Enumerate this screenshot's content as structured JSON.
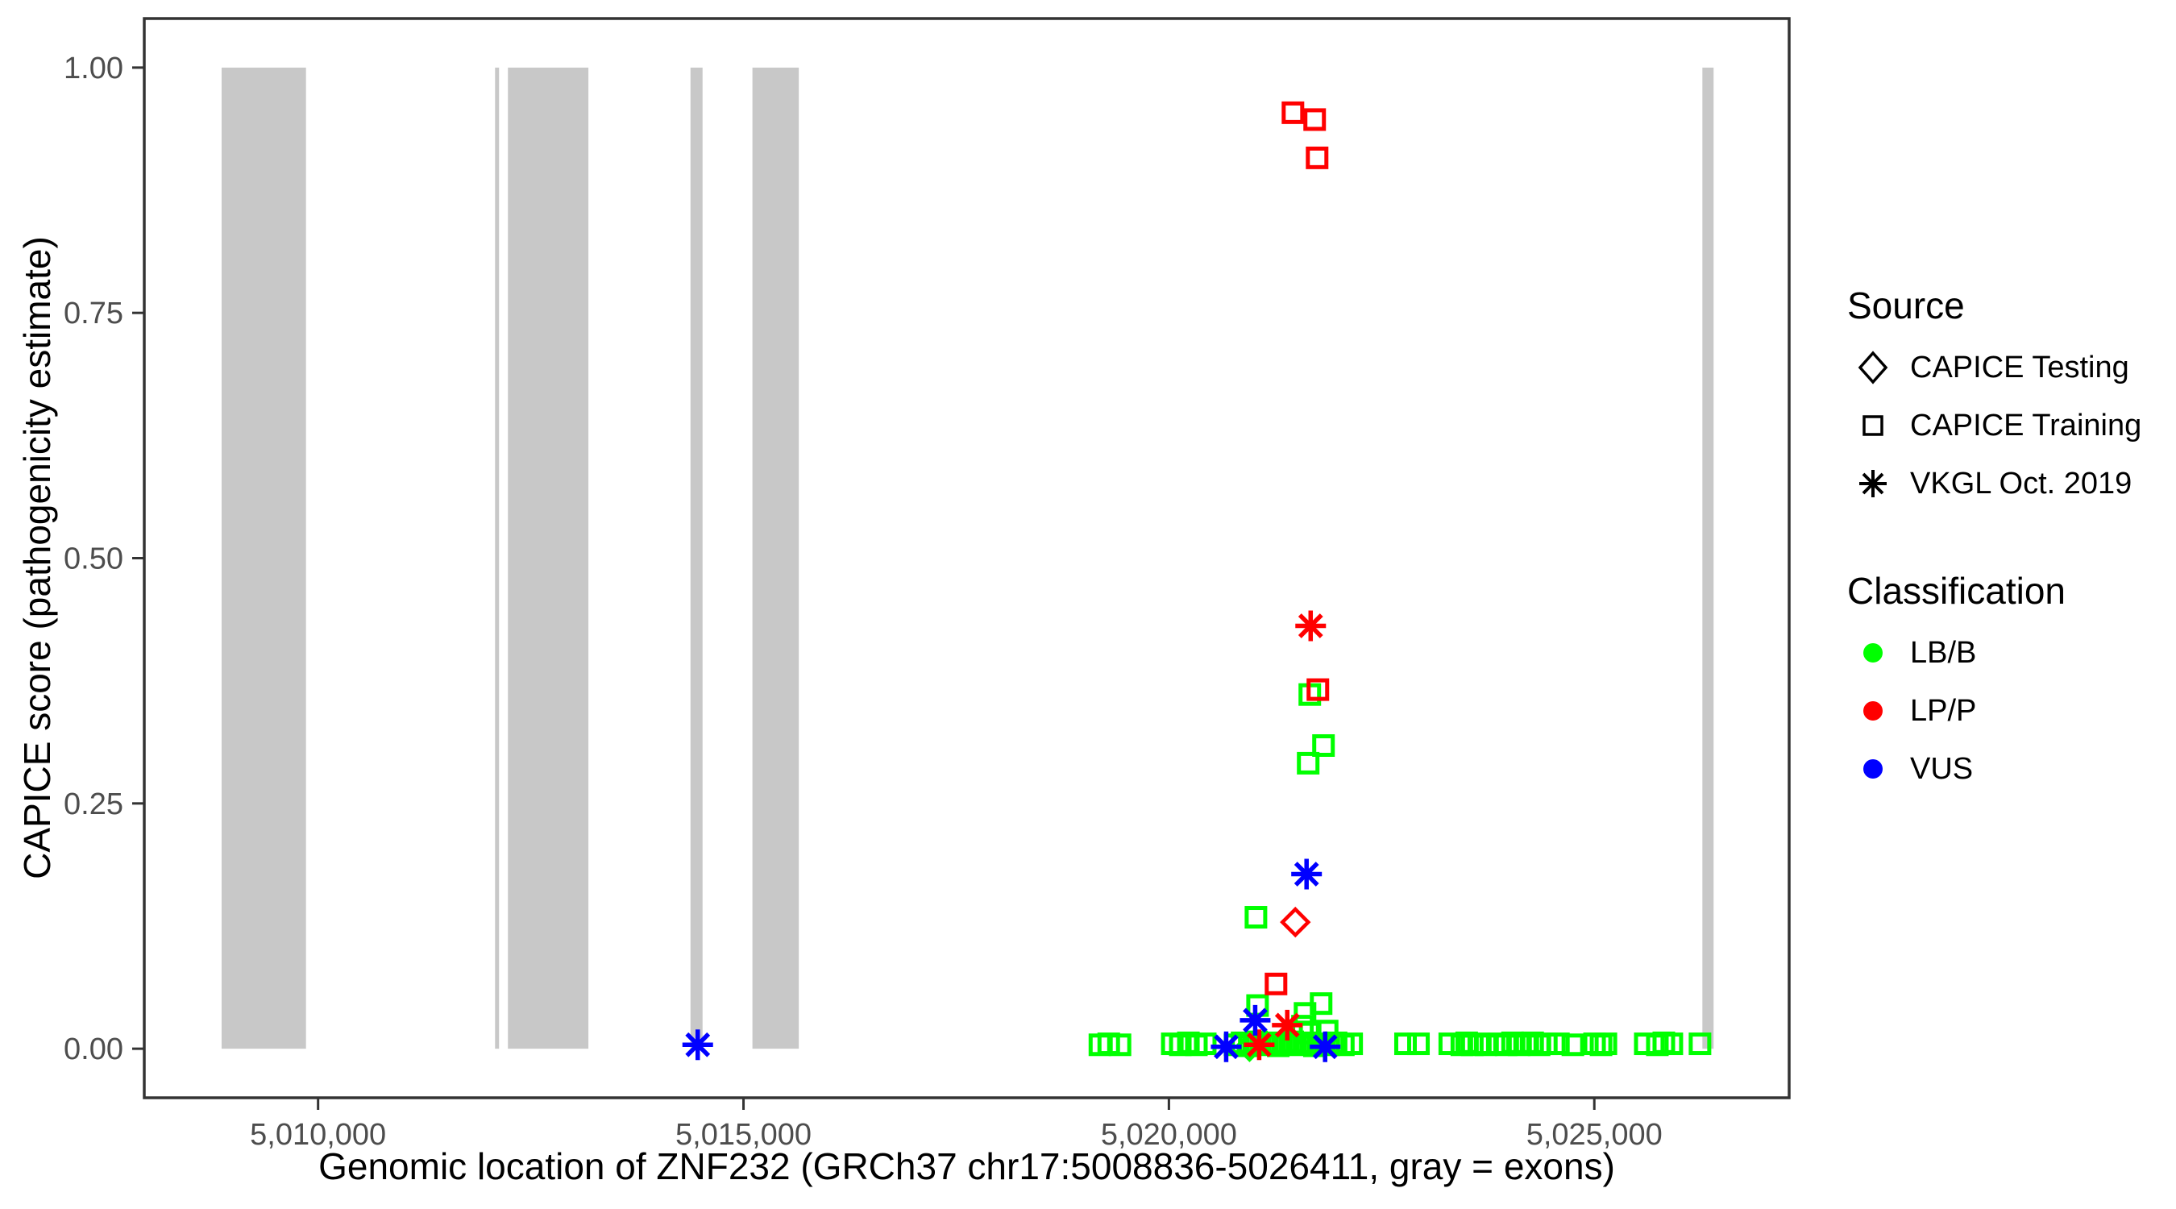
{
  "figure_title": "",
  "colors": {
    "background": "#FFFFFF",
    "panel_border": "#333333",
    "tick_text": "#4D4D4D",
    "exon_gray": "#C8C8C8",
    "lb_b_green": "#00FF00",
    "lp_p_red": "#FF0000",
    "vus_blue": "#0000FF",
    "legend_symbol_black": "#000000"
  },
  "legend": {
    "source": {
      "title": "Source",
      "items": [
        {
          "label": "CAPICE Testing",
          "symbol": "diamond-open"
        },
        {
          "label": "CAPICE Training",
          "symbol": "square-open"
        },
        {
          "label": "VKGL Oct. 2019",
          "symbol": "asterisk"
        }
      ]
    },
    "classification": {
      "title": "Classification",
      "items": [
        {
          "label": "LB/B",
          "color": "#00FF00"
        },
        {
          "label": "LP/P",
          "color": "#FF0000"
        },
        {
          "label": "VUS",
          "color": "#0000FF"
        }
      ]
    }
  },
  "chart_data": {
    "type": "scatter",
    "title": "",
    "xlabel": "Genomic location of ZNF232 (GRCh37 chr17:5008836-5026411, gray = exons)",
    "ylabel": "CAPICE score (pathogenicity estimate)",
    "xlim": [
      5007957,
      5027290
    ],
    "ylim": [
      -0.05,
      1.05
    ],
    "grid": false,
    "legend_position": "right",
    "x_ticks": {
      "values": [
        5010000,
        5015000,
        5020000,
        5025000
      ],
      "labels": [
        "5,010,000",
        "5,015,000",
        "5,020,000",
        "5,025,000"
      ]
    },
    "y_ticks": {
      "values": [
        0.0,
        0.25,
        0.5,
        0.75,
        1.0
      ],
      "labels": [
        "0.00",
        "0.25",
        "0.50",
        "0.75",
        "1.00"
      ]
    },
    "exon_bands_x_ranges": [
      [
        5008866,
        5009858
      ],
      [
        5012080,
        5012127
      ],
      [
        5012231,
        5013177
      ],
      [
        5014377,
        5014519
      ],
      [
        5015105,
        5015650
      ],
      [
        5026270,
        5026402
      ]
    ],
    "exon_bands_y_range": [
      0.0,
      1.0
    ],
    "shape_map": {
      "testing": "diamond",
      "training": "square",
      "vkgl": "asterisk"
    },
    "source_labels": {
      "testing": "CAPICE Testing",
      "training": "CAPICE Training",
      "vkgl": "VKGL Oct. 2019"
    },
    "color_map": {
      "LB/B": "#00FF00",
      "LP/P": "#FF0000",
      "VUS": "#0000FF"
    },
    "points": [
      {
        "x": 5019189,
        "y": 0.004,
        "source": "training",
        "classification": "LB/B"
      },
      {
        "x": 5019293,
        "y": 0.005,
        "source": "training",
        "classification": "LB/B"
      },
      {
        "x": 5019425,
        "y": 0.004,
        "source": "training",
        "classification": "LB/B"
      },
      {
        "x": 5020040,
        "y": 0.005,
        "source": "training",
        "classification": "LB/B"
      },
      {
        "x": 5020134,
        "y": 0.004,
        "source": "training",
        "classification": "LB/B"
      },
      {
        "x": 5020229,
        "y": 0.006,
        "source": "training",
        "classification": "LB/B"
      },
      {
        "x": 5020323,
        "y": 0.004,
        "source": "training",
        "classification": "LB/B"
      },
      {
        "x": 5020427,
        "y": 0.005,
        "source": "training",
        "classification": "LB/B"
      },
      {
        "x": 5020777,
        "y": 0.004,
        "source": "training",
        "classification": "LB/B"
      },
      {
        "x": 5020860,
        "y": 0.006,
        "source": "training",
        "classification": "LB/B"
      },
      {
        "x": 5020945,
        "y": 0.003,
        "source": "training",
        "classification": "LB/B"
      },
      {
        "x": 5021030,
        "y": 0.007,
        "source": "training",
        "classification": "LB/B"
      },
      {
        "x": 5021115,
        "y": 0.004,
        "source": "training",
        "classification": "LB/B"
      },
      {
        "x": 5021200,
        "y": 0.006,
        "source": "training",
        "classification": "LB/B"
      },
      {
        "x": 5021285,
        "y": 0.003,
        "source": "training",
        "classification": "LB/B"
      },
      {
        "x": 5021370,
        "y": 0.005,
        "source": "training",
        "classification": "LB/B"
      },
      {
        "x": 5021455,
        "y": 0.007,
        "source": "training",
        "classification": "LB/B"
      },
      {
        "x": 5021540,
        "y": 0.004,
        "source": "training",
        "classification": "LB/B"
      },
      {
        "x": 5021625,
        "y": 0.006,
        "source": "training",
        "classification": "LB/B"
      },
      {
        "x": 5021710,
        "y": 0.003,
        "source": "training",
        "classification": "LB/B"
      },
      {
        "x": 5021795,
        "y": 0.005,
        "source": "training",
        "classification": "LB/B"
      },
      {
        "x": 5021880,
        "y": 0.004,
        "source": "training",
        "classification": "LB/B"
      },
      {
        "x": 5021965,
        "y": 0.006,
        "source": "training",
        "classification": "LB/B"
      },
      {
        "x": 5022050,
        "y": 0.004,
        "source": "training",
        "classification": "LB/B"
      },
      {
        "x": 5022148,
        "y": 0.005,
        "source": "training",
        "classification": "LB/B"
      },
      {
        "x": 5022781,
        "y": 0.005,
        "source": "training",
        "classification": "LB/B"
      },
      {
        "x": 5022933,
        "y": 0.005,
        "source": "training",
        "classification": "LB/B"
      },
      {
        "x": 5023301,
        "y": 0.005,
        "source": "training",
        "classification": "LB/B"
      },
      {
        "x": 5023443,
        "y": 0.004,
        "source": "training",
        "classification": "LB/B"
      },
      {
        "x": 5023500,
        "y": 0.006,
        "source": "training",
        "classification": "LB/B"
      },
      {
        "x": 5023566,
        "y": 0.004,
        "source": "training",
        "classification": "LB/B"
      },
      {
        "x": 5023642,
        "y": 0.005,
        "source": "training",
        "classification": "LB/B"
      },
      {
        "x": 5023727,
        "y": 0.004,
        "source": "training",
        "classification": "LB/B"
      },
      {
        "x": 5023878,
        "y": 0.005,
        "source": "training",
        "classification": "LB/B"
      },
      {
        "x": 5023963,
        "y": 0.004,
        "source": "training",
        "classification": "LB/B"
      },
      {
        "x": 5024039,
        "y": 0.006,
        "source": "training",
        "classification": "LB/B"
      },
      {
        "x": 5024115,
        "y": 0.004,
        "source": "training",
        "classification": "LB/B"
      },
      {
        "x": 5024200,
        "y": 0.005,
        "source": "training",
        "classification": "LB/B"
      },
      {
        "x": 5024275,
        "y": 0.006,
        "source": "training",
        "classification": "LB/B"
      },
      {
        "x": 5024351,
        "y": 0.004,
        "source": "training",
        "classification": "LB/B"
      },
      {
        "x": 5024436,
        "y": 0.005,
        "source": "training",
        "classification": "LB/B"
      },
      {
        "x": 5024578,
        "y": 0.005,
        "source": "training",
        "classification": "LB/B"
      },
      {
        "x": 5024748,
        "y": 0.004,
        "source": "training",
        "classification": "LB/B"
      },
      {
        "x": 5025003,
        "y": 0.005,
        "source": "training",
        "classification": "LB/B"
      },
      {
        "x": 5025079,
        "y": 0.004,
        "source": "training",
        "classification": "LB/B"
      },
      {
        "x": 5025136,
        "y": 0.005,
        "source": "training",
        "classification": "LB/B"
      },
      {
        "x": 5025599,
        "y": 0.005,
        "source": "training",
        "classification": "LB/B"
      },
      {
        "x": 5025741,
        "y": 0.004,
        "source": "training",
        "classification": "LB/B"
      },
      {
        "x": 5025817,
        "y": 0.006,
        "source": "training",
        "classification": "LB/B"
      },
      {
        "x": 5025911,
        "y": 0.005,
        "source": "training",
        "classification": "LB/B"
      },
      {
        "x": 5026242,
        "y": 0.005,
        "source": "training",
        "classification": "LB/B"
      },
      {
        "x": 5021656,
        "y": 0.361,
        "source": "training",
        "classification": "LB/B"
      },
      {
        "x": 5021817,
        "y": 0.309,
        "source": "training",
        "classification": "LB/B"
      },
      {
        "x": 5021637,
        "y": 0.291,
        "source": "training",
        "classification": "LB/B"
      },
      {
        "x": 5021023,
        "y": 0.134,
        "source": "training",
        "classification": "LB/B"
      },
      {
        "x": 5021042,
        "y": 0.044,
        "source": "training",
        "classification": "LB/B"
      },
      {
        "x": 5021789,
        "y": 0.046,
        "source": "training",
        "classification": "LB/B"
      },
      {
        "x": 5021600,
        "y": 0.036,
        "source": "training",
        "classification": "LB/B"
      },
      {
        "x": 5021570,
        "y": 0.023,
        "source": "training",
        "classification": "LB/B"
      },
      {
        "x": 5021660,
        "y": 0.016,
        "source": "training",
        "classification": "LB/B"
      },
      {
        "x": 5021860,
        "y": 0.018,
        "source": "training",
        "classification": "LB/B"
      },
      {
        "x": 5021458,
        "y": 0.954,
        "source": "training",
        "classification": "LP/P"
      },
      {
        "x": 5021713,
        "y": 0.947,
        "source": "training",
        "classification": "LP/P"
      },
      {
        "x": 5021742,
        "y": 0.908,
        "source": "training",
        "classification": "LP/P"
      },
      {
        "x": 5021751,
        "y": 0.366,
        "source": "training",
        "classification": "LP/P"
      },
      {
        "x": 5021259,
        "y": 0.066,
        "source": "training",
        "classification": "LP/P"
      },
      {
        "x": 5021486,
        "y": 0.129,
        "source": "testing",
        "classification": "LP/P"
      },
      {
        "x": 5020948,
        "y": 0.002,
        "source": "testing",
        "classification": "LB/B"
      },
      {
        "x": 5021666,
        "y": 0.431,
        "source": "vkgl",
        "classification": "LP/P"
      },
      {
        "x": 5021391,
        "y": 0.024,
        "source": "vkgl",
        "classification": "LP/P"
      },
      {
        "x": 5021061,
        "y": 0.004,
        "source": "vkgl",
        "classification": "LP/P"
      },
      {
        "x": 5021618,
        "y": 0.178,
        "source": "vkgl",
        "classification": "VUS"
      },
      {
        "x": 5021014,
        "y": 0.029,
        "source": "vkgl",
        "classification": "VUS"
      },
      {
        "x": 5020673,
        "y": 0.002,
        "source": "vkgl",
        "classification": "VUS"
      },
      {
        "x": 5021836,
        "y": 0.002,
        "source": "vkgl",
        "classification": "VUS"
      },
      {
        "x": 5014462,
        "y": 0.004,
        "source": "vkgl",
        "classification": "VUS"
      }
    ]
  }
}
